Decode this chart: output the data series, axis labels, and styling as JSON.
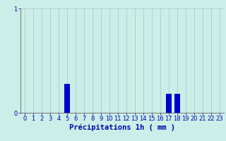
{
  "hours": [
    0,
    1,
    2,
    3,
    4,
    5,
    6,
    7,
    8,
    9,
    10,
    11,
    12,
    13,
    14,
    15,
    16,
    17,
    18,
    19,
    20,
    21,
    22,
    23
  ],
  "values": [
    0,
    0,
    0,
    0,
    0,
    0.28,
    0,
    0,
    0,
    0,
    0,
    0,
    0,
    0,
    0,
    0,
    0,
    0.18,
    0.18,
    0,
    0,
    0,
    0,
    0
  ],
  "bar_color": "#0000cc",
  "background_color": "#cceee8",
  "grid_color": "#b0c8c8",
  "axis_color": "#0000aa",
  "xlabel": "Précipitations 1h ( mm )",
  "ylim": [
    0,
    1.0
  ],
  "yticks": [
    0,
    1
  ],
  "xlabel_fontsize": 7.5,
  "tick_fontsize": 6.0
}
